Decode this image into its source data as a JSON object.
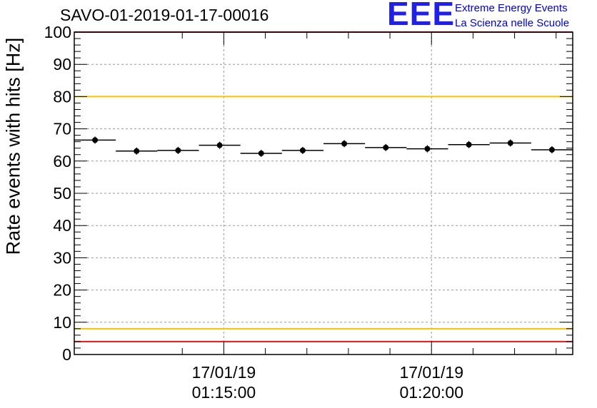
{
  "title": "SAVO-01-2019-01-17-00016",
  "logo": {
    "mark": "EEE",
    "line1": "Extreme Energy Events",
    "line2": "La Scienza nelle Scuole"
  },
  "chart_data": {
    "type": "scatter",
    "title": "SAVO-01-2019-01-17-00016",
    "xlabel": "",
    "ylabel": "Rate events with hits [Hz]",
    "ylim": [
      0,
      100
    ],
    "yticks": [
      "0",
      "10",
      "20",
      "30",
      "40",
      "50",
      "60",
      "70",
      "80",
      "90",
      "100"
    ],
    "xlim_minutes": [
      0,
      12
    ],
    "xtick_labels": [
      {
        "date": "17/01/19",
        "time": "01:15:00",
        "minute": 3.6
      },
      {
        "date": "17/01/19",
        "time": "01:20:00",
        "minute": 8.6
      }
    ],
    "grid": true,
    "series": [
      {
        "name": "rate",
        "bin_width_minutes": 1,
        "x_minutes": [
          0.5,
          1.5,
          2.5,
          3.5,
          4.5,
          5.5,
          6.5,
          7.5,
          8.5,
          9.5,
          10.5,
          11.5
        ],
        "values": [
          66.5,
          63.1,
          63.3,
          64.9,
          62.4,
          63.3,
          65.4,
          64.2,
          63.8,
          65.1,
          65.6,
          63.5
        ]
      }
    ],
    "reference_lines": [
      {
        "y": 100,
        "color": "#e8141c"
      },
      {
        "y": 80,
        "color": "#f5c400"
      },
      {
        "y": 8,
        "color": "#f5c400"
      },
      {
        "y": 4,
        "color": "#e8141c"
      }
    ]
  }
}
